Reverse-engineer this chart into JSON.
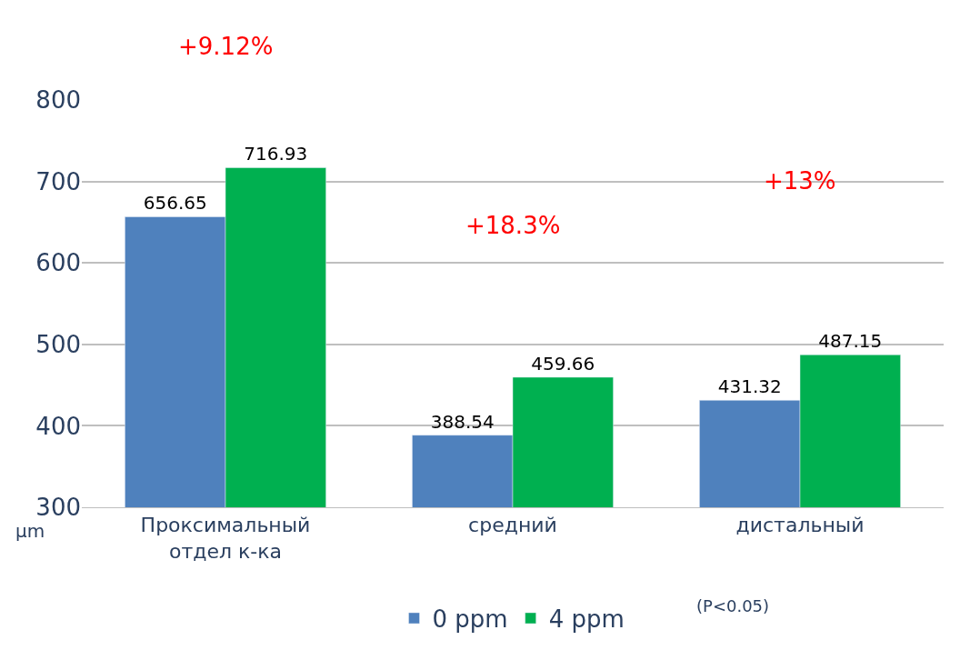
{
  "chart_data": {
    "type": "bar",
    "categories": [
      "Проксимальный отдел к-ка",
      "средний",
      "дистальный"
    ],
    "series": [
      {
        "name": "0 ppm",
        "color": "#4f81bd",
        "values": [
          656.65,
          388.54,
          431.32
        ]
      },
      {
        "name": "4 ppm",
        "color": "#00b050",
        "values": [
          716.93,
          459.66,
          487.15
        ]
      }
    ],
    "ylabel": "µm",
    "ylim": [
      300,
      800
    ],
    "yticks": [
      300,
      400,
      500,
      600,
      700,
      800
    ],
    "grid": "y",
    "legend": "bottom",
    "data_labels": true,
    "annotations": [
      "+9.12%",
      "+18.3%",
      "+13%",
      "(P<0.05)"
    ]
  }
}
